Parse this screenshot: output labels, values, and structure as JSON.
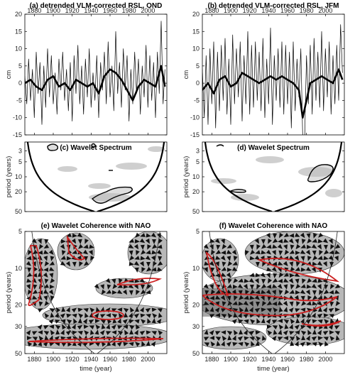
{
  "chart_data": [
    {
      "id": "a",
      "type": "line",
      "title": "(a) detrended VLM-corrected RSL, OND",
      "ylabel": "cm",
      "xlim": [
        1870,
        2020
      ],
      "ylim": [
        -15,
        20
      ],
      "xticks": [
        1880,
        1900,
        1920,
        1940,
        1960,
        1980,
        2000
      ],
      "yticks": [
        -15,
        -10,
        -5,
        0,
        5,
        10,
        15,
        20
      ],
      "x_tick_position": "top",
      "series": [
        {
          "style": "thin",
          "x": [
            1870,
            1872,
            1874,
            1876,
            1878,
            1880,
            1882,
            1884,
            1886,
            1888,
            1890,
            1892,
            1894,
            1896,
            1898,
            1900,
            1902,
            1904,
            1906,
            1908,
            1910,
            1912,
            1914,
            1916,
            1918,
            1920,
            1922,
            1924,
            1926,
            1928,
            1930,
            1932,
            1934,
            1936,
            1938,
            1940,
            1942,
            1944,
            1946,
            1948,
            1950,
            1952,
            1954,
            1956,
            1958,
            1960,
            1962,
            1964,
            1966,
            1968,
            1970,
            1972,
            1974,
            1976,
            1978,
            1980,
            1982,
            1984,
            1986,
            1988,
            1990,
            1992,
            1994,
            1996,
            1998,
            2000,
            2002,
            2004,
            2006,
            2008,
            2010,
            2012,
            2014,
            2016,
            2018
          ],
          "values": [
            2,
            -6,
            7,
            -5,
            4,
            -10,
            9,
            -3,
            6,
            -12,
            5,
            -7,
            10,
            -4,
            8,
            -6,
            3,
            -9,
            7,
            -2,
            9,
            -5,
            4,
            -8,
            6,
            -11,
            8,
            -3,
            11,
            -6,
            5,
            -9,
            7,
            -4,
            10,
            -7,
            3,
            -5,
            8,
            -10,
            6,
            -2,
            9,
            -6,
            12,
            -4,
            5,
            -8,
            15,
            -3,
            6,
            -7,
            10,
            -2,
            8,
            -11,
            4,
            -6,
            9,
            -3,
            7,
            -9,
            5,
            -4,
            11,
            -7,
            8,
            -5,
            6,
            -10,
            9,
            -3,
            18,
            -6,
            4
          ]
        },
        {
          "style": "thick",
          "x": [
            1870,
            1876,
            1882,
            1888,
            1894,
            1900,
            1906,
            1912,
            1918,
            1924,
            1930,
            1936,
            1942,
            1948,
            1954,
            1960,
            1966,
            1972,
            1978,
            1984,
            1990,
            1996,
            2002,
            2008,
            2014,
            2018
          ],
          "values": [
            0,
            1,
            -1,
            -2,
            1,
            2,
            -1,
            0,
            -2,
            1,
            0,
            -1,
            0,
            -3,
            2,
            4,
            3,
            1,
            -2,
            -5,
            -1,
            1,
            0,
            -1,
            5,
            -1
          ]
        }
      ]
    },
    {
      "id": "b",
      "type": "line",
      "title": "(b) detrended VLM-corrected RSL, JFM",
      "ylabel": "cm",
      "xlim": [
        1870,
        2020
      ],
      "ylim": [
        -15,
        20
      ],
      "xticks": [
        1880,
        1900,
        1920,
        1940,
        1960,
        1980,
        2000
      ],
      "yticks": [
        -15,
        -10,
        -5,
        0,
        5,
        10,
        15,
        20
      ],
      "x_tick_position": "top",
      "series": [
        {
          "style": "thin",
          "x": [
            1870,
            1872,
            1874,
            1876,
            1878,
            1880,
            1882,
            1884,
            1886,
            1888,
            1890,
            1892,
            1894,
            1896,
            1898,
            1900,
            1902,
            1904,
            1906,
            1908,
            1910,
            1912,
            1914,
            1916,
            1918,
            1920,
            1922,
            1924,
            1926,
            1928,
            1930,
            1932,
            1934,
            1936,
            1938,
            1940,
            1942,
            1944,
            1946,
            1948,
            1950,
            1952,
            1954,
            1956,
            1958,
            1960,
            1962,
            1964,
            1966,
            1968,
            1970,
            1972,
            1974,
            1976,
            1978,
            1980,
            1982,
            1984,
            1986,
            1988,
            1990,
            1992,
            1994,
            1996,
            1998,
            2000,
            2002,
            2004,
            2006,
            2008,
            2010,
            2012,
            2014,
            2016,
            2018
          ],
          "values": [
            4,
            -10,
            8,
            -12,
            10,
            -6,
            12,
            -13,
            9,
            -8,
            11,
            -5,
            13,
            -9,
            7,
            -12,
            14,
            -6,
            10,
            -4,
            12,
            -11,
            8,
            -6,
            15,
            -9,
            11,
            -7,
            12,
            -5,
            9,
            -8,
            13,
            -10,
            7,
            -6,
            16,
            -12,
            8,
            -5,
            10,
            -7,
            12,
            -9,
            11,
            -6,
            9,
            -13,
            12,
            -8,
            7,
            -4,
            10,
            -15,
            -17,
            8,
            -6,
            11,
            -9,
            13,
            -5,
            9,
            -7,
            15,
            -8,
            10,
            -4,
            12,
            -9,
            8,
            -6,
            11,
            -5,
            17,
            3
          ]
        },
        {
          "style": "thick",
          "x": [
            1870,
            1876,
            1882,
            1888,
            1894,
            1900,
            1906,
            1912,
            1918,
            1924,
            1930,
            1936,
            1942,
            1948,
            1954,
            1960,
            1966,
            1972,
            1976,
            1980,
            1984,
            1990,
            1996,
            2002,
            2008,
            2014,
            2018
          ],
          "values": [
            -2,
            0,
            -3,
            1,
            2,
            -1,
            0,
            3,
            2,
            1,
            0,
            1,
            2,
            1,
            2,
            1,
            0,
            -2,
            -10,
            -5,
            0,
            1,
            2,
            1,
            0,
            4,
            1
          ]
        }
      ]
    },
    {
      "id": "c",
      "type": "heatmap",
      "title": "(c) Wavelet Spectrum",
      "ylabel": "period (years)",
      "xlim": [
        1870,
        2020
      ],
      "yticks": [
        3,
        5,
        10,
        20,
        50
      ],
      "y_scale": "log",
      "y_reversed": true,
      "ylim": [
        2,
        50
      ]
    },
    {
      "id": "d",
      "type": "heatmap",
      "title": "(d) Wavelet Spectrum",
      "ylabel": "period (years)",
      "xlim": [
        1870,
        2020
      ],
      "yticks": [
        3,
        5,
        10,
        20,
        50
      ],
      "y_scale": "log",
      "y_reversed": true,
      "ylim": [
        2,
        50
      ]
    },
    {
      "id": "e",
      "type": "heatmap",
      "title": "(e) Wavelet Coherence with NAO",
      "ylabel": "period (years)",
      "xlabel": "time (year)",
      "xlim": [
        1870,
        2020
      ],
      "xticks": [
        1880,
        1900,
        1920,
        1940,
        1960,
        1980,
        2000
      ],
      "yticks": [
        5,
        10,
        20,
        30,
        50
      ],
      "y_scale": "log",
      "y_reversed": true,
      "ylim": [
        5,
        50
      ]
    },
    {
      "id": "f",
      "type": "heatmap",
      "title": "(f) Wavelet Coherence with NAO",
      "ylabel": "period (years)",
      "xlabel": "time (year)",
      "xlim": [
        1870,
        2020
      ],
      "xticks": [
        1880,
        1900,
        1920,
        1940,
        1960,
        1980,
        2000
      ],
      "yticks": [
        5,
        10,
        20,
        30,
        50
      ],
      "y_scale": "log",
      "y_reversed": true,
      "ylim": [
        5,
        50
      ]
    }
  ]
}
